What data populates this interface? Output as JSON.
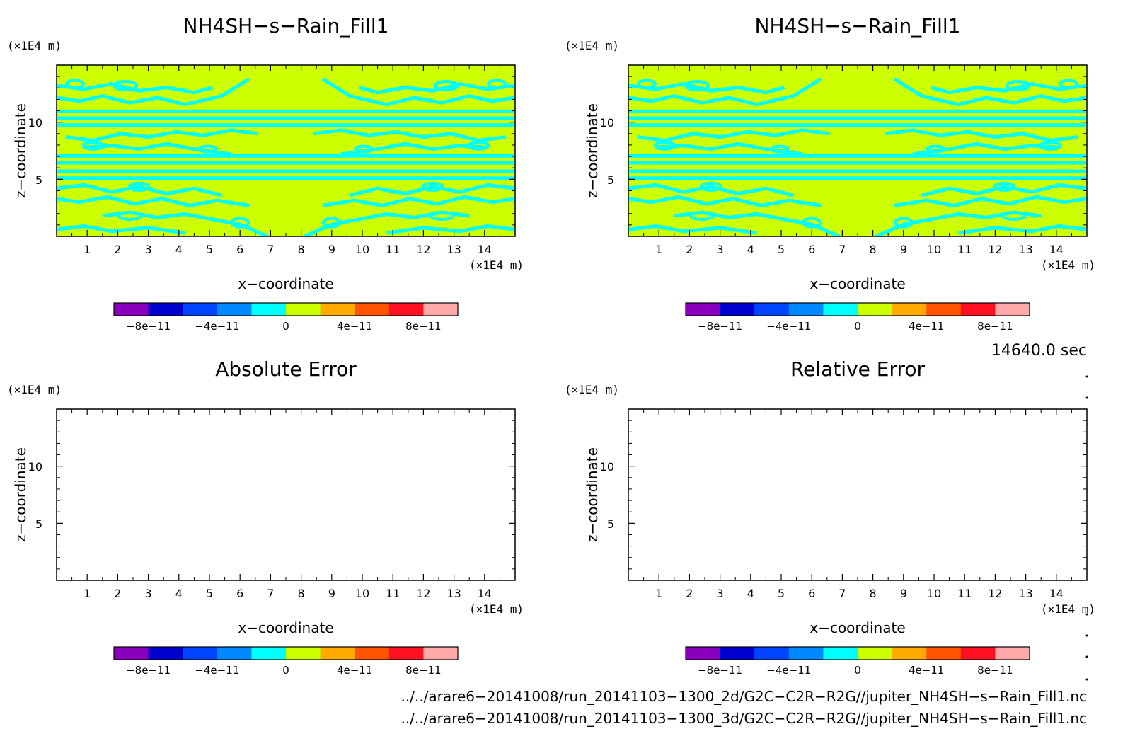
{
  "chart_data": [
    {
      "type": "heatmap",
      "title": "NH4SH−s−Rain_Fill1",
      "xlabel": "x−coordinate",
      "ylabel": "z−coordinate",
      "xunit": "(×1E4 m)",
      "yunit": "(×1E4 m)",
      "xlim": [
        0,
        15
      ],
      "ylim": [
        0,
        15
      ],
      "xticks": [
        "1",
        "2",
        "3",
        "4",
        "5",
        "6",
        "7",
        "8",
        "9",
        "10",
        "11",
        "12",
        "13",
        "14"
      ],
      "yticks": [
        "5",
        "10"
      ],
      "field": {
        "dominant_color": "#ccff00",
        "secondary_color": "#00ffff",
        "near_zero": true
      }
    },
    {
      "type": "heatmap",
      "title": "NH4SH−s−Rain_Fill1",
      "xlabel": "x−coordinate",
      "ylabel": "z−coordinate",
      "xunit": "(×1E4 m)",
      "yunit": "(×1E4 m)",
      "xlim": [
        0,
        15
      ],
      "ylim": [
        0,
        15
      ],
      "xticks": [
        "1",
        "2",
        "3",
        "4",
        "5",
        "6",
        "7",
        "8",
        "9",
        "10",
        "11",
        "12",
        "13",
        "14"
      ],
      "yticks": [
        "5",
        "10"
      ],
      "field": {
        "dominant_color": "#ccff00",
        "secondary_color": "#00ffff",
        "near_zero": true
      }
    },
    {
      "type": "heatmap",
      "title": "Absolute Error",
      "xlabel": "x−coordinate",
      "ylabel": "z−coordinate",
      "xunit": "(×1E4 m)",
      "yunit": "(×1E4 m)",
      "xlim": [
        0,
        15
      ],
      "ylim": [
        0,
        15
      ],
      "xticks": [
        "1",
        "2",
        "3",
        "4",
        "5",
        "6",
        "7",
        "8",
        "9",
        "10",
        "11",
        "12",
        "13",
        "14"
      ],
      "yticks": [
        "5",
        "10"
      ],
      "field": {
        "empty": true
      }
    },
    {
      "type": "heatmap",
      "title": "Relative Error",
      "xlabel": "x−coordinate",
      "ylabel": "z−coordinate",
      "xunit": "(×1E4 m)",
      "yunit": "(×1E4 m)",
      "xlim": [
        0,
        15
      ],
      "ylim": [
        0,
        15
      ],
      "xticks": [
        "1",
        "2",
        "3",
        "4",
        "5",
        "6",
        "7",
        "8",
        "9",
        "10",
        "11",
        "12",
        "13",
        "14"
      ],
      "yticks": [
        "5",
        "10"
      ],
      "field": {
        "empty": true
      }
    }
  ],
  "colorbar": {
    "colors": [
      "#8800bb",
      "#0000cc",
      "#0044ff",
      "#0088ff",
      "#00ffff",
      "#ccff00",
      "#ffaa00",
      "#ff5500",
      "#ff1122",
      "#ffaaaa"
    ],
    "labels": [
      "−8e−11",
      "−4e−11",
      "0",
      "4e−11",
      "8e−11"
    ],
    "label_values": [
      -8e-11,
      -4e-11,
      0,
      4e-11,
      8e-11
    ],
    "range": [
      -1e-10,
      1e-10
    ]
  },
  "time_label": "14640.0 sec",
  "footer": {
    "line1": "../../arare6−20141008/run_20141103−1300_2d/G2C−C2R−R2G//jupiter_NH4SH−s−Rain_Fill1.nc",
    "line2": "../../arare6−20141008/run_20141103−1300_3d/G2C−C2R−R2G//jupiter_NH4SH−s−Rain_Fill1.nc"
  }
}
